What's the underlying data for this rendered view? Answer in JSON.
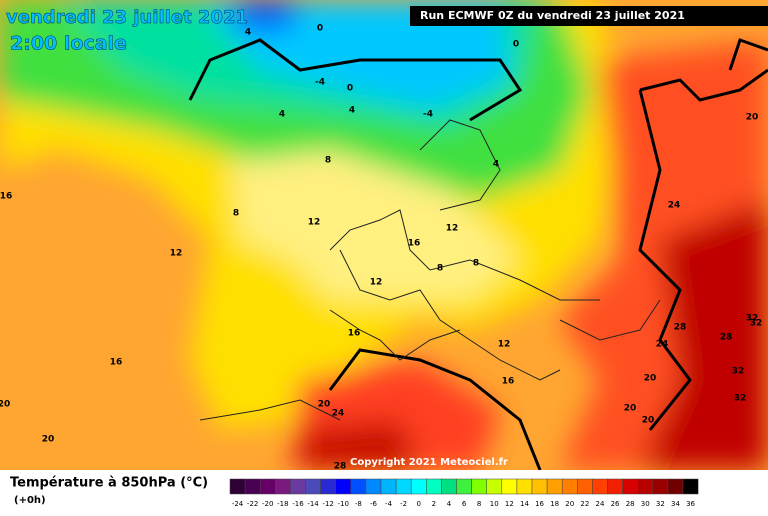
{
  "header": {
    "date": "vendredi 23 juillet 2021",
    "time": "2:00 locale",
    "run": "Run ECMWF 0Z du vendredi 23 juillet 2021"
  },
  "map": {
    "contour_labels": [
      "0",
      "0",
      "4",
      "-4",
      "0",
      "-4",
      "4",
      "4",
      "4",
      "8",
      "8",
      "12",
      "16",
      "12",
      "16",
      "12",
      "8",
      "8",
      "12",
      "16",
      "12",
      "16",
      "16",
      "20",
      "20",
      "20",
      "24",
      "28",
      "20",
      "24",
      "28",
      "24",
      "28",
      "32",
      "32",
      "20",
      "20",
      "32",
      "32",
      "20"
    ]
  },
  "copyright": "Copyright 2021 Meteociel.fr",
  "legend": {
    "title": "Température à 850hPa (°C)",
    "subtitle": "(+0h)",
    "labels": [
      -24,
      -22,
      -20,
      -18,
      -16,
      -14,
      -12,
      -10,
      -8,
      -6,
      -4,
      -2,
      0,
      2,
      4,
      6,
      8,
      10,
      12,
      14,
      16,
      18,
      20,
      22,
      24,
      26,
      28,
      30,
      32,
      34,
      36
    ],
    "colors": [
      "#2e0033",
      "#4a0052",
      "#660066",
      "#7a1a80",
      "#6b3aa0",
      "#4a4ab8",
      "#2a2ad4",
      "#0000ff",
      "#0050ff",
      "#0088ff",
      "#00b4ff",
      "#00d8ff",
      "#00ffff",
      "#00ffc0",
      "#00e080",
      "#40f040",
      "#80ff00",
      "#c8ff00",
      "#ffff00",
      "#ffe000",
      "#ffc000",
      "#ffa000",
      "#ff8000",
      "#ff6000",
      "#ff4000",
      "#f02000",
      "#d80000",
      "#b80000",
      "#980000",
      "#700000",
      "#000000"
    ]
  }
}
